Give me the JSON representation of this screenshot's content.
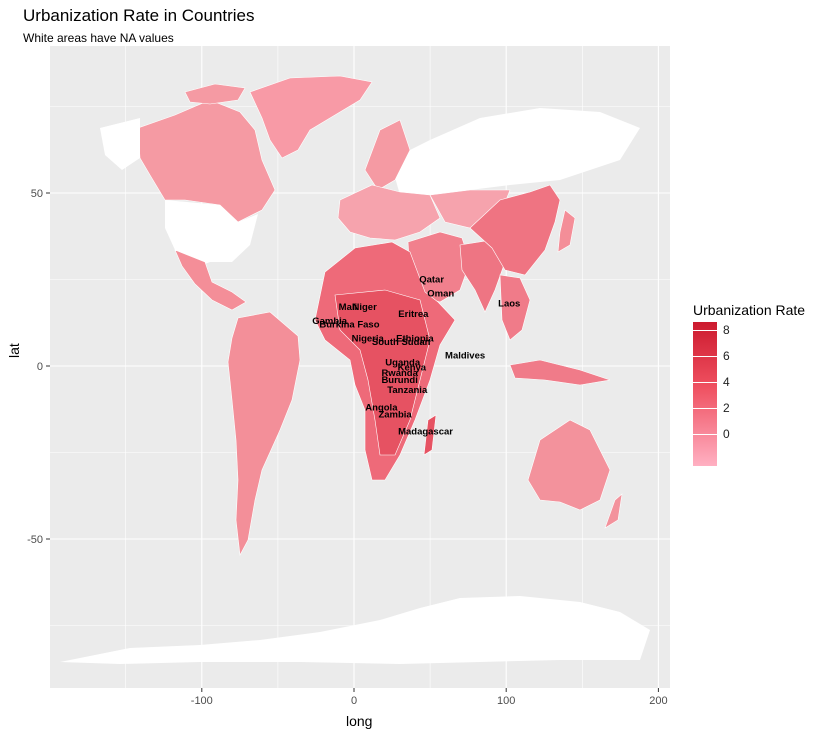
{
  "title": "Urbanization Rate in Countries",
  "subtitle": "White areas have NA values",
  "chart_data": {
    "type": "map",
    "xlabel": "long",
    "ylabel": "lat",
    "x_ticks": [
      -100,
      0,
      100,
      200
    ],
    "y_ticks": [
      -50,
      0,
      50
    ],
    "x_tick_labels": [
      "-100",
      "0",
      "100",
      "200"
    ],
    "y_tick_labels": [
      "-50",
      "0",
      "50"
    ],
    "xlim": [
      -200,
      210
    ],
    "ylim": [
      -93,
      93
    ],
    "grid": true,
    "background_color": "#ebebeb",
    "na_color": "#ffffff",
    "legend": {
      "title": "Urbanization Rate",
      "placement": "right",
      "ticks": [
        "8",
        "6",
        "4",
        "2",
        "0"
      ],
      "low_color": "#ffb0c2",
      "high_color": "#cc1a2e"
    },
    "country_labels": [
      {
        "name": "Qatar",
        "long": 51,
        "lat": 25
      },
      {
        "name": "Oman",
        "long": 57,
        "lat": 21
      },
      {
        "name": "Laos",
        "long": 102,
        "lat": 18
      },
      {
        "name": "Mali",
        "long": -4,
        "lat": 17
      },
      {
        "name": "Niger",
        "long": 7,
        "lat": 17
      },
      {
        "name": "Eritrea",
        "long": 39,
        "lat": 15
      },
      {
        "name": "Gambia",
        "long": -16,
        "lat": 13
      },
      {
        "name": "Burkina Faso",
        "long": -3,
        "lat": 12
      },
      {
        "name": "Nigeria",
        "long": 9,
        "lat": 8
      },
      {
        "name": "Ethiopia",
        "long": 40,
        "lat": 8
      },
      {
        "name": "South Sudan",
        "long": 31,
        "lat": 7
      },
      {
        "name": "Maldives",
        "long": 73,
        "lat": 3
      },
      {
        "name": "Uganda",
        "long": 32,
        "lat": 1
      },
      {
        "name": "Kenya",
        "long": 38,
        "lat": -0.5
      },
      {
        "name": "Rwanda",
        "long": 30,
        "lat": -2
      },
      {
        "name": "Burundi",
        "long": 30,
        "lat": -4
      },
      {
        "name": "Tanzania",
        "long": 35,
        "lat": -7
      },
      {
        "name": "Angola",
        "long": 18,
        "lat": -12
      },
      {
        "name": "Zambia",
        "long": 27,
        "lat": -14
      },
      {
        "name": "Madagascar",
        "long": 47,
        "lat": -19
      }
    ]
  }
}
